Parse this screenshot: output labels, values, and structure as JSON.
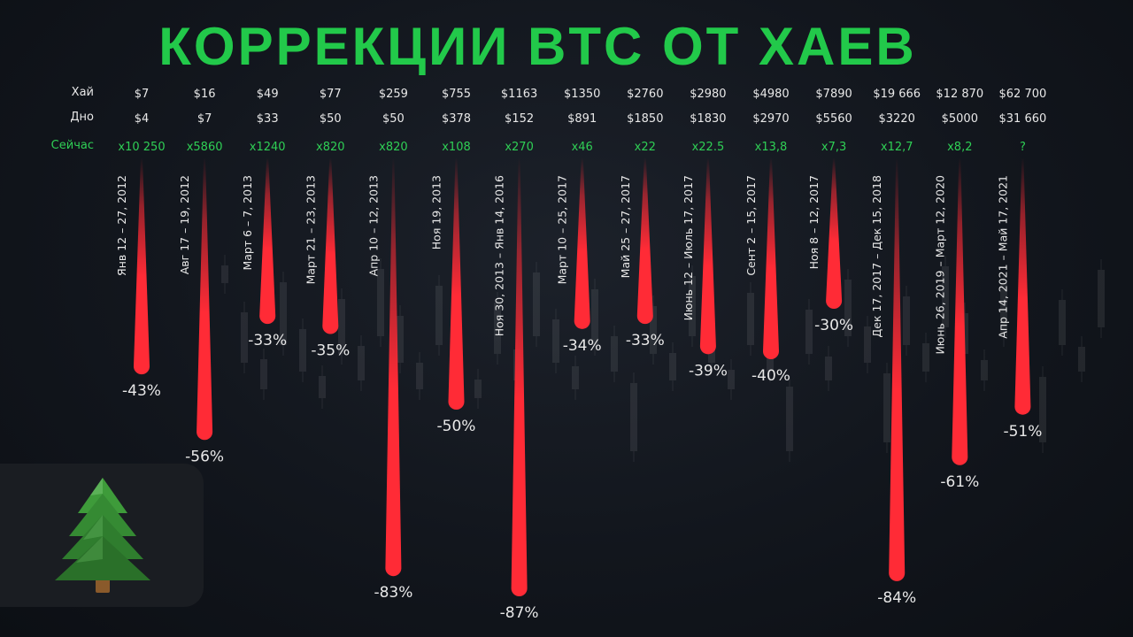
{
  "title": "КОРРЕКЦИИ BTC ОТ ХАЕВ",
  "rows": {
    "high": "Хай",
    "low": "Дно",
    "now": "Сейчас"
  },
  "colors": {
    "title": "#22c94a",
    "now": "#2fcf55",
    "drop": "#ff2b36",
    "text": "#e8e8e8"
  },
  "logo": {
    "icon": "fir-tree-icon"
  },
  "chart_data": {
    "type": "bar",
    "orientation": "downward-drops",
    "title": "КОРРЕКЦИИ BTC ОТ ХАЕВ",
    "ylim": [
      0,
      -87
    ],
    "bars": [
      {
        "period": "Янв 12 – 27, 2012",
        "high": "$7",
        "low": "$4",
        "now": "x10 250",
        "value": -43,
        "label": "-43%"
      },
      {
        "period": "Авг 17 – 19, 2012",
        "high": "$16",
        "low": "$7",
        "now": "x5860",
        "value": -56,
        "label": "-56%"
      },
      {
        "period": "Март 6 – 7, 2013",
        "high": "$49",
        "low": "$33",
        "now": "x1240",
        "value": -33,
        "label": "-33%"
      },
      {
        "period": "Март 21 – 23, 2013",
        "high": "$77",
        "low": "$50",
        "now": "x820",
        "value": -35,
        "label": "-35%"
      },
      {
        "period": "Апр 10 – 12, 2013",
        "high": "$259",
        "low": "$50",
        "now": "x820",
        "value": -83,
        "label": "-83%"
      },
      {
        "period": "Ноя 19, 2013",
        "high": "$755",
        "low": "$378",
        "now": "x108",
        "value": -50,
        "label": "-50%"
      },
      {
        "period": "Ноя 30, 2013 – Янв 14, 2016",
        "high": "$1163",
        "low": "$152",
        "now": "x270",
        "value": -87,
        "label": "-87%"
      },
      {
        "period": "Март 10 – 25, 2017",
        "high": "$1350",
        "low": "$891",
        "now": "x46",
        "value": -34,
        "label": "-34%"
      },
      {
        "period": "Май 25 – 27, 2017",
        "high": "$2760",
        "low": "$1850",
        "now": "x22",
        "value": -33,
        "label": "-33%"
      },
      {
        "period": "Июнь 12 – Июль 17, 2017",
        "high": "$2980",
        "low": "$1830",
        "now": "x22.5",
        "value": -39,
        "label": "-39%"
      },
      {
        "period": "Сент 2 – 15, 2017",
        "high": "$4980",
        "low": "$2970",
        "now": "x13,8",
        "value": -40,
        "label": "-40%"
      },
      {
        "period": "Ноя 8 – 12, 2017",
        "high": "$7890",
        "low": "$5560",
        "now": "x7,3",
        "value": -30,
        "label": "-30%"
      },
      {
        "period": "Дек 17, 2017 – Дек 15, 2018",
        "high": "$19 666",
        "low": "$3220",
        "now": "x12,7",
        "value": -84,
        "label": "-84%"
      },
      {
        "period": "Июнь 26, 2019 – Март 12, 2020",
        "high": "$12 870",
        "low": "$5000",
        "now": "x8,2",
        "value": -61,
        "label": "-61%"
      },
      {
        "period": "Апр 14, 2021 – Май 17, 2021",
        "high": "$62 700",
        "low": "$31 660",
        "now": "?",
        "value": -51,
        "label": "-51%"
      }
    ]
  }
}
